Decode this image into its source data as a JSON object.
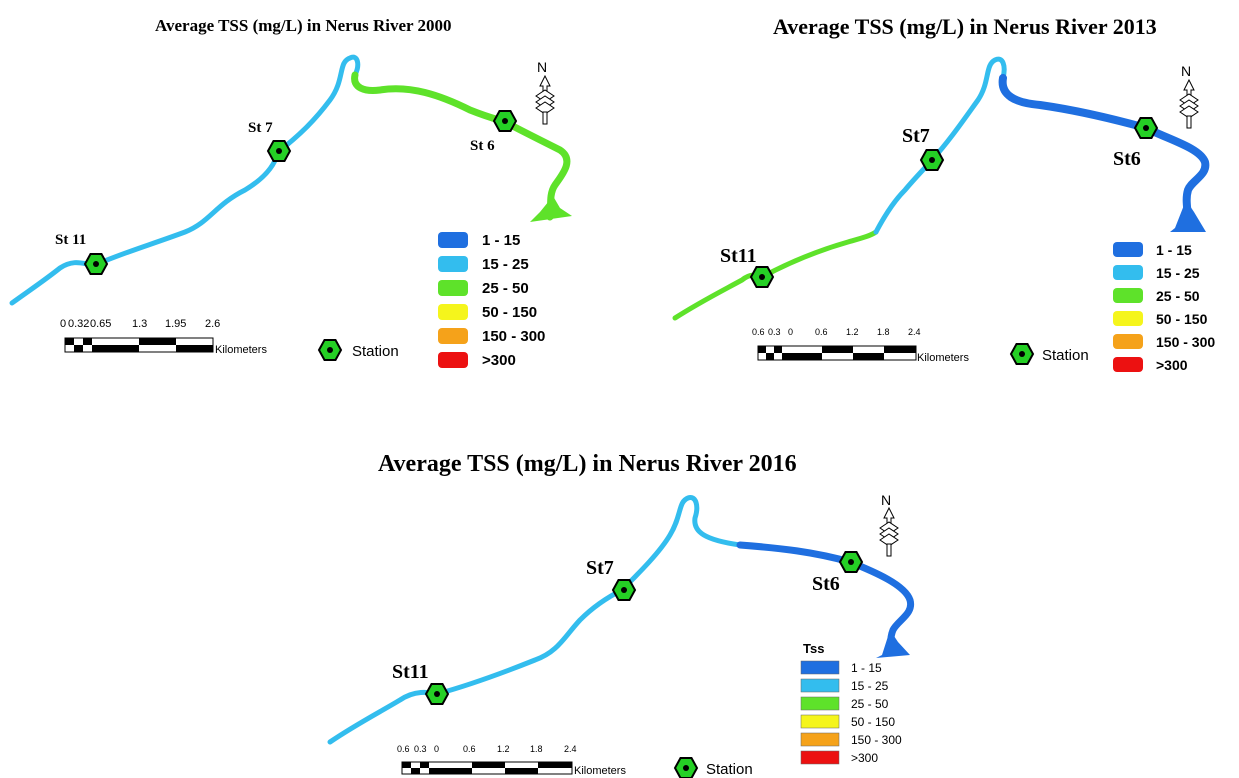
{
  "maps": [
    {
      "title": "Average TSS (mg/L) in Nerus River 2000",
      "stations": [
        "St 11",
        "St 7",
        "St 6"
      ],
      "legend_title": "",
      "scale_ticks": [
        "0",
        "0.32",
        "0.65",
        "1.3",
        "1.95",
        "2.6"
      ],
      "scale_unit": "Kilometers",
      "segments": [
        {
          "from": "St 11",
          "to": "St 7",
          "class": "15 - 25"
        },
        {
          "from": "St 7",
          "to": "bend",
          "class": "15 - 25"
        },
        {
          "from": "bend",
          "to": "St 6",
          "class": "25 - 50"
        },
        {
          "from": "St 6",
          "to": "outlet",
          "class": "25 - 50"
        }
      ]
    },
    {
      "title": "Average TSS (mg/L) in Nerus River 2013",
      "stations": [
        "St11",
        "St7",
        "St6"
      ],
      "legend_title": "",
      "scale_ticks": [
        "0.6",
        "0.3",
        "0",
        "0.6",
        "1.2",
        "1.8",
        "2.4"
      ],
      "scale_unit": "Kilometers",
      "segments": [
        {
          "from": "upstream",
          "to": "St11",
          "class": "25 - 50"
        },
        {
          "from": "St11",
          "to": "St7",
          "class": "15 - 25"
        },
        {
          "from": "St7",
          "to": "bend",
          "class": "15 - 25"
        },
        {
          "from": "bend",
          "to": "St6",
          "class": "1 - 15"
        },
        {
          "from": "St6",
          "to": "outlet",
          "class": "1 - 15"
        }
      ]
    },
    {
      "title": "Average TSS (mg/L) in Nerus River 2016",
      "stations": [
        "St11",
        "St7",
        "St6"
      ],
      "legend_title": "Tss",
      "scale_ticks": [
        "0.6",
        "0.3",
        "0",
        "0.6",
        "1.2",
        "1.8",
        "2.4"
      ],
      "scale_unit": "Kilometers",
      "segments": [
        {
          "from": "upstream",
          "to": "St11",
          "class": "15 - 25"
        },
        {
          "from": "St11",
          "to": "St7",
          "class": "15 - 25"
        },
        {
          "from": "St7",
          "to": "bend",
          "class": "15 - 25"
        },
        {
          "from": "bend",
          "to": "St6",
          "class": "1 - 15"
        },
        {
          "from": "St6",
          "to": "outlet",
          "class": "1 - 15"
        }
      ]
    }
  ],
  "legend_classes": [
    {
      "label": "1 - 15",
      "color": "#1f6fe0"
    },
    {
      "label": "15 - 25",
      "color": "#33bdee"
    },
    {
      "label": "25 - 50",
      "color": "#5ee22a"
    },
    {
      "label": "50 - 150",
      "color": "#f5f51c"
    },
    {
      "label": "150 - 300",
      "color": "#f5a21a"
    },
    {
      "label": ">300",
      "color": "#ec1111"
    }
  ],
  "station_symbol_label": "Station",
  "north_label": "N",
  "station_color": "#25d025"
}
